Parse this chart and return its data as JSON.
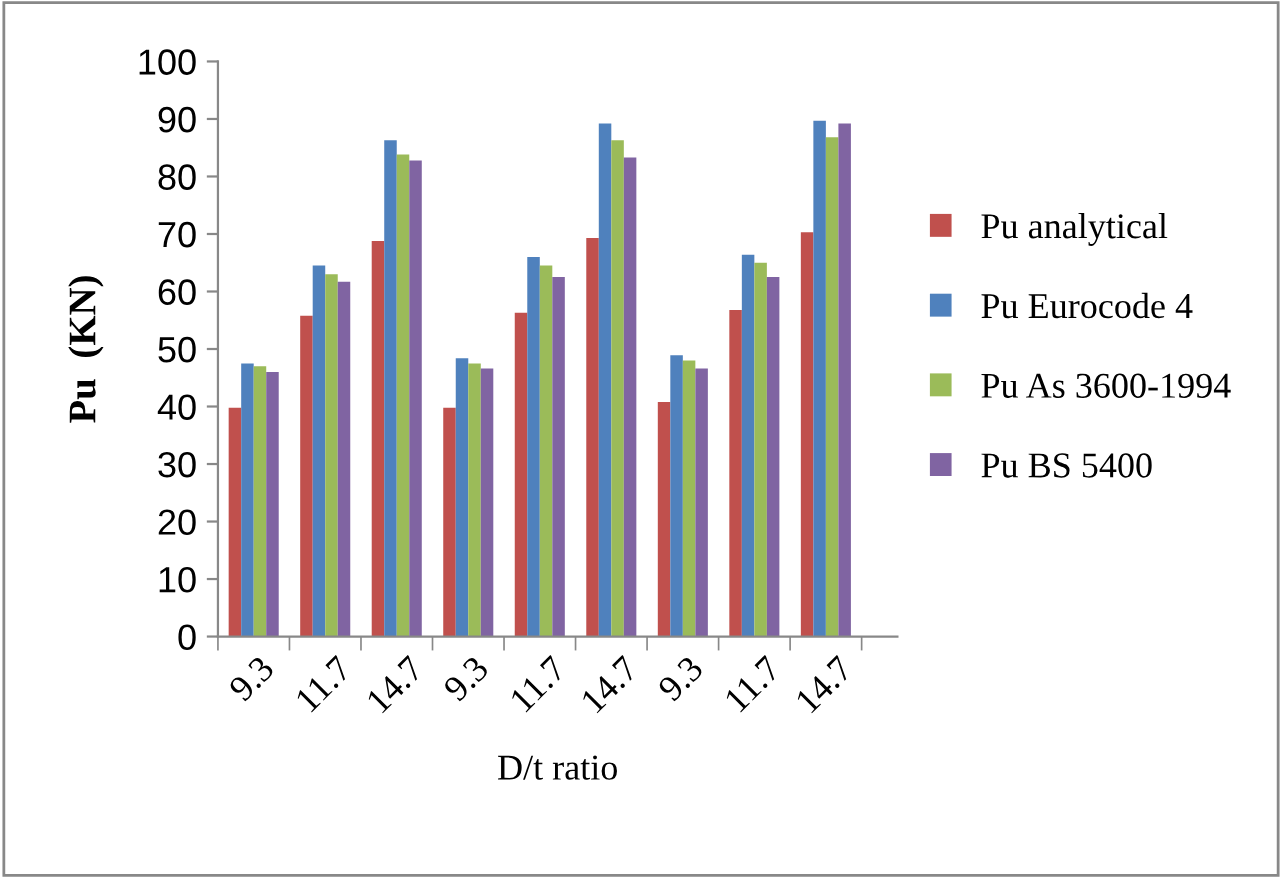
{
  "chart_data": {
    "type": "bar",
    "xlabel": "D/t ratio",
    "ylabel": "Pu  (KN)",
    "categories": [
      "9.3",
      "11.7",
      "14.7",
      "9.3",
      "11.7",
      "14.7",
      "9.3",
      "11.7",
      "14.7"
    ],
    "series": [
      {
        "name": "Pu analytical",
        "color": "#c0504d",
        "values": [
          39.8,
          55.8,
          68.8,
          39.8,
          56.3,
          69.3,
          40.8,
          56.8,
          70.3
        ]
      },
      {
        "name": "Pu Eurocode 4",
        "color": "#4f81bd",
        "values": [
          47.5,
          64.5,
          86.3,
          48.4,
          66.0,
          89.2,
          48.9,
          66.4,
          89.7
        ]
      },
      {
        "name": "Pu As 3600-1994",
        "color": "#9bbb59",
        "values": [
          47.0,
          63.0,
          83.8,
          47.5,
          64.5,
          86.3,
          48.0,
          65.0,
          86.8
        ]
      },
      {
        "name": "Pu BS 5400",
        "color": "#8064a2",
        "values": [
          46.0,
          61.7,
          82.8,
          46.6,
          62.5,
          83.3,
          46.6,
          62.5,
          89.2
        ]
      }
    ],
    "ylim": [
      0,
      100
    ],
    "yticks": [
      0,
      10,
      20,
      30,
      40,
      50,
      60,
      70,
      80,
      90,
      100
    ],
    "grid": false,
    "legend": "right"
  }
}
